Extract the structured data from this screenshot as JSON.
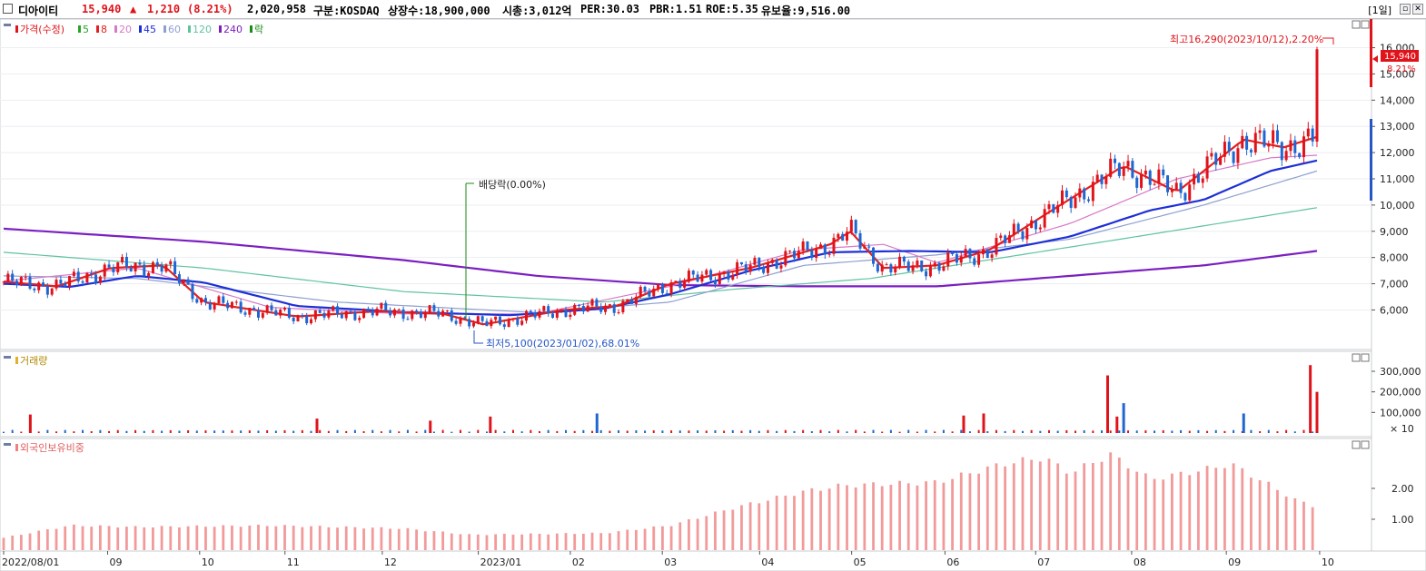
{
  "header": {
    "name": "디아이티",
    "price": "15,940",
    "change_arrow": "▲",
    "change": "1,210",
    "change_pct": "(8.21%)",
    "volume": "2,020,958",
    "market": "구분:KOSDAQ",
    "shares": "상장수:18,900,000",
    "mcap": "시총:3,012억",
    "per": "PER:30.03",
    "pbr": "PBR:1.51",
    "roe": "ROE:5.35",
    "float": "유보율:9,516.00",
    "period": "[1일]",
    "max_icon": "maximize-icon",
    "close_icon": "close-icon"
  },
  "legend": {
    "price_label": "가격(수정)",
    "ma": [
      {
        "label": "5",
        "color": "#27a427"
      },
      {
        "label": "8",
        "color": "#e41f1f"
      },
      {
        "label": "20",
        "color": "#d879c8"
      },
      {
        "label": "45",
        "color": "#1d2fd6"
      },
      {
        "label": "60",
        "color": "#8e9fd0"
      },
      {
        "label": "120",
        "color": "#5fc3a0"
      },
      {
        "label": "240",
        "color": "#7b1fc0"
      },
      {
        "label": "락",
        "color": "#1a8a1a"
      }
    ]
  },
  "annotations": {
    "high": "최고16,290(2023/10/12),2.20%",
    "low": "최저5,100(2023/01/02),68.01%",
    "dividend": "배당락(0.00%)",
    "price_tag": "15,940",
    "pct_tag": "8.21%"
  },
  "volume_panel": {
    "title": "거래량",
    "ticks": [
      "300,000",
      "200,000",
      "100,000"
    ],
    "unit": "× 10"
  },
  "foreign_panel": {
    "title": "외국인보유비중",
    "ticks": [
      "2.00",
      "1.00"
    ]
  },
  "x_labels": [
    "2022/08/01",
    "09",
    "10",
    "11",
    "12",
    "2023/01",
    "02",
    "03",
    "04",
    "05",
    "06",
    "07",
    "08",
    "09",
    "10"
  ],
  "chart_data": {
    "type": "line",
    "title": "디아이티",
    "x_range": [
      "2022/08/01",
      "2023/10/13"
    ],
    "y_ticks_price": [
      "16,000",
      "15,000",
      "14,000",
      "13,000",
      "12,000",
      "11,000",
      "10,000",
      "9,000",
      "8,000",
      "7,000",
      "6,000"
    ],
    "ylim_price": [
      4700,
      17300
    ],
    "colors": {
      "up": "#e0131a",
      "down": "#1f66d1"
    },
    "price_close_anchors": [
      [
        "2022/08/01",
        7100
      ],
      [
        "2022/08/15",
        7000
      ],
      [
        "2022/09/01",
        7700
      ],
      [
        "2022/09/20",
        7900
      ],
      [
        "2022/10/01",
        6400
      ],
      [
        "2022/10/20",
        6000
      ],
      [
        "2022/11/15",
        5900
      ],
      [
        "2022/12/01",
        6100
      ],
      [
        "2022/12/20",
        5900
      ],
      [
        "2023/01/02",
        5300
      ],
      [
        "2023/01/15",
        6100
      ],
      [
        "2023/02/01",
        6100
      ],
      [
        "2023/02/20",
        6500
      ],
      [
        "2023/03/01",
        7100
      ],
      [
        "2023/03/20",
        7500
      ],
      [
        "2023/04/01",
        8200
      ],
      [
        "2023/04/20",
        8800
      ],
      [
        "2023/04/25",
        9700
      ],
      [
        "2023/05/05",
        7800
      ],
      [
        "2023/05/15",
        7300
      ],
      [
        "2023/06/01",
        7900
      ],
      [
        "2023/06/20",
        8300
      ],
      [
        "2023/07/01",
        10000
      ],
      [
        "2023/07/15",
        9200
      ],
      [
        "2023/08/01",
        10500
      ],
      [
        "2023/08/05",
        13000
      ],
      [
        "2023/08/20",
        10500
      ],
      [
        "2023/09/01",
        10700
      ],
      [
        "2023/09/10",
        12900
      ],
      [
        "2023/09/25",
        13300
      ],
      [
        "2023/10/05",
        12100
      ],
      [
        "2023/10/12",
        15940
      ]
    ],
    "series": [
      {
        "name": "8",
        "color": "#e41f1f",
        "values": [
          [
            0,
            7080
          ],
          [
            0.04,
            6900
          ],
          [
            0.08,
            7600
          ],
          [
            0.12,
            7700
          ],
          [
            0.15,
            6300
          ],
          [
            0.22,
            5750
          ],
          [
            0.28,
            5950
          ],
          [
            0.33,
            5850
          ],
          [
            0.36,
            5450
          ],
          [
            0.42,
            6000
          ],
          [
            0.46,
            6150
          ],
          [
            0.5,
            7000
          ],
          [
            0.56,
            7600
          ],
          [
            0.62,
            8500
          ],
          [
            0.635,
            9000
          ],
          [
            0.66,
            7600
          ],
          [
            0.7,
            7700
          ],
          [
            0.74,
            8300
          ],
          [
            0.78,
            9600
          ],
          [
            0.84,
            11500
          ],
          [
            0.88,
            10500
          ],
          [
            0.93,
            12500
          ],
          [
            0.96,
            12200
          ],
          [
            0.985,
            12600
          ]
        ]
      },
      {
        "name": "45",
        "color": "#1d2fd6",
        "values": [
          [
            0,
            7000
          ],
          [
            0.05,
            6880
          ],
          [
            0.1,
            7300
          ],
          [
            0.15,
            7050
          ],
          [
            0.22,
            6150
          ],
          [
            0.3,
            5920
          ],
          [
            0.38,
            5800
          ],
          [
            0.45,
            6050
          ],
          [
            0.5,
            6600
          ],
          [
            0.56,
            7500
          ],
          [
            0.62,
            8200
          ],
          [
            0.68,
            8250
          ],
          [
            0.74,
            8200
          ],
          [
            0.8,
            8800
          ],
          [
            0.86,
            9800
          ],
          [
            0.9,
            10200
          ],
          [
            0.95,
            11300
          ],
          [
            0.985,
            11700
          ]
        ]
      },
      {
        "name": "20",
        "color": "#d879c8",
        "values": [
          [
            0,
            7100
          ],
          [
            0.1,
            7600
          ],
          [
            0.2,
            6100
          ],
          [
            0.3,
            5850
          ],
          [
            0.4,
            5850
          ],
          [
            0.5,
            6900
          ],
          [
            0.6,
            8300
          ],
          [
            0.66,
            8500
          ],
          [
            0.7,
            7800
          ],
          [
            0.8,
            9300
          ],
          [
            0.88,
            11000
          ],
          [
            0.95,
            11800
          ],
          [
            0.985,
            11900
          ]
        ]
      },
      {
        "name": "60",
        "color": "#8e9fd0",
        "values": [
          [
            0,
            7300
          ],
          [
            0.1,
            7200
          ],
          [
            0.25,
            6300
          ],
          [
            0.4,
            5900
          ],
          [
            0.5,
            6300
          ],
          [
            0.6,
            7700
          ],
          [
            0.7,
            8100
          ],
          [
            0.8,
            8700
          ],
          [
            0.9,
            10000
          ],
          [
            0.985,
            11300
          ]
        ]
      },
      {
        "name": "120",
        "color": "#5fc3a0",
        "values": [
          [
            0,
            8200
          ],
          [
            0.15,
            7600
          ],
          [
            0.3,
            6700
          ],
          [
            0.45,
            6300
          ],
          [
            0.55,
            6800
          ],
          [
            0.65,
            7200
          ],
          [
            0.75,
            8000
          ],
          [
            0.85,
            8800
          ],
          [
            0.985,
            9900
          ]
        ]
      },
      {
        "name": "240",
        "color": "#7b1fc0",
        "values": [
          [
            0,
            9100
          ],
          [
            0.15,
            8600
          ],
          [
            0.3,
            7900
          ],
          [
            0.4,
            7300
          ],
          [
            0.5,
            6950
          ],
          [
            0.6,
            6900
          ],
          [
            0.7,
            6900
          ],
          [
            0.8,
            7300
          ],
          [
            0.9,
            7700
          ],
          [
            0.985,
            8250
          ]
        ]
      }
    ],
    "volume_spikes": [
      [
        0.02,
        90000
      ],
      [
        0.235,
        70000
      ],
      [
        0.32,
        60000
      ],
      [
        0.365,
        80000
      ],
      [
        0.445,
        95000
      ],
      [
        0.72,
        85000
      ],
      [
        0.735,
        95000
      ],
      [
        0.828,
        280000
      ],
      [
        0.835,
        80000
      ],
      [
        0.84,
        145000
      ],
      [
        0.93,
        95000
      ],
      [
        0.98,
        330000
      ],
      [
        0.985,
        200000
      ]
    ],
    "foreign_ratio": [
      [
        0,
        0.4
      ],
      [
        0.05,
        0.8
      ],
      [
        0.1,
        0.75
      ],
      [
        0.2,
        0.8
      ],
      [
        0.3,
        0.7
      ],
      [
        0.35,
        0.5
      ],
      [
        0.45,
        0.55
      ],
      [
        0.5,
        0.8
      ],
      [
        0.55,
        1.4
      ],
      [
        0.6,
        1.9
      ],
      [
        0.63,
        2.1
      ],
      [
        0.7,
        2.2
      ],
      [
        0.75,
        2.8
      ],
      [
        0.78,
        3.0
      ],
      [
        0.8,
        2.5
      ],
      [
        0.83,
        3.1
      ],
      [
        0.86,
        2.3
      ],
      [
        0.9,
        2.6
      ],
      [
        0.92,
        2.8
      ],
      [
        0.95,
        2.1
      ],
      [
        0.97,
        1.6
      ],
      [
        0.985,
        1.4
      ]
    ]
  }
}
